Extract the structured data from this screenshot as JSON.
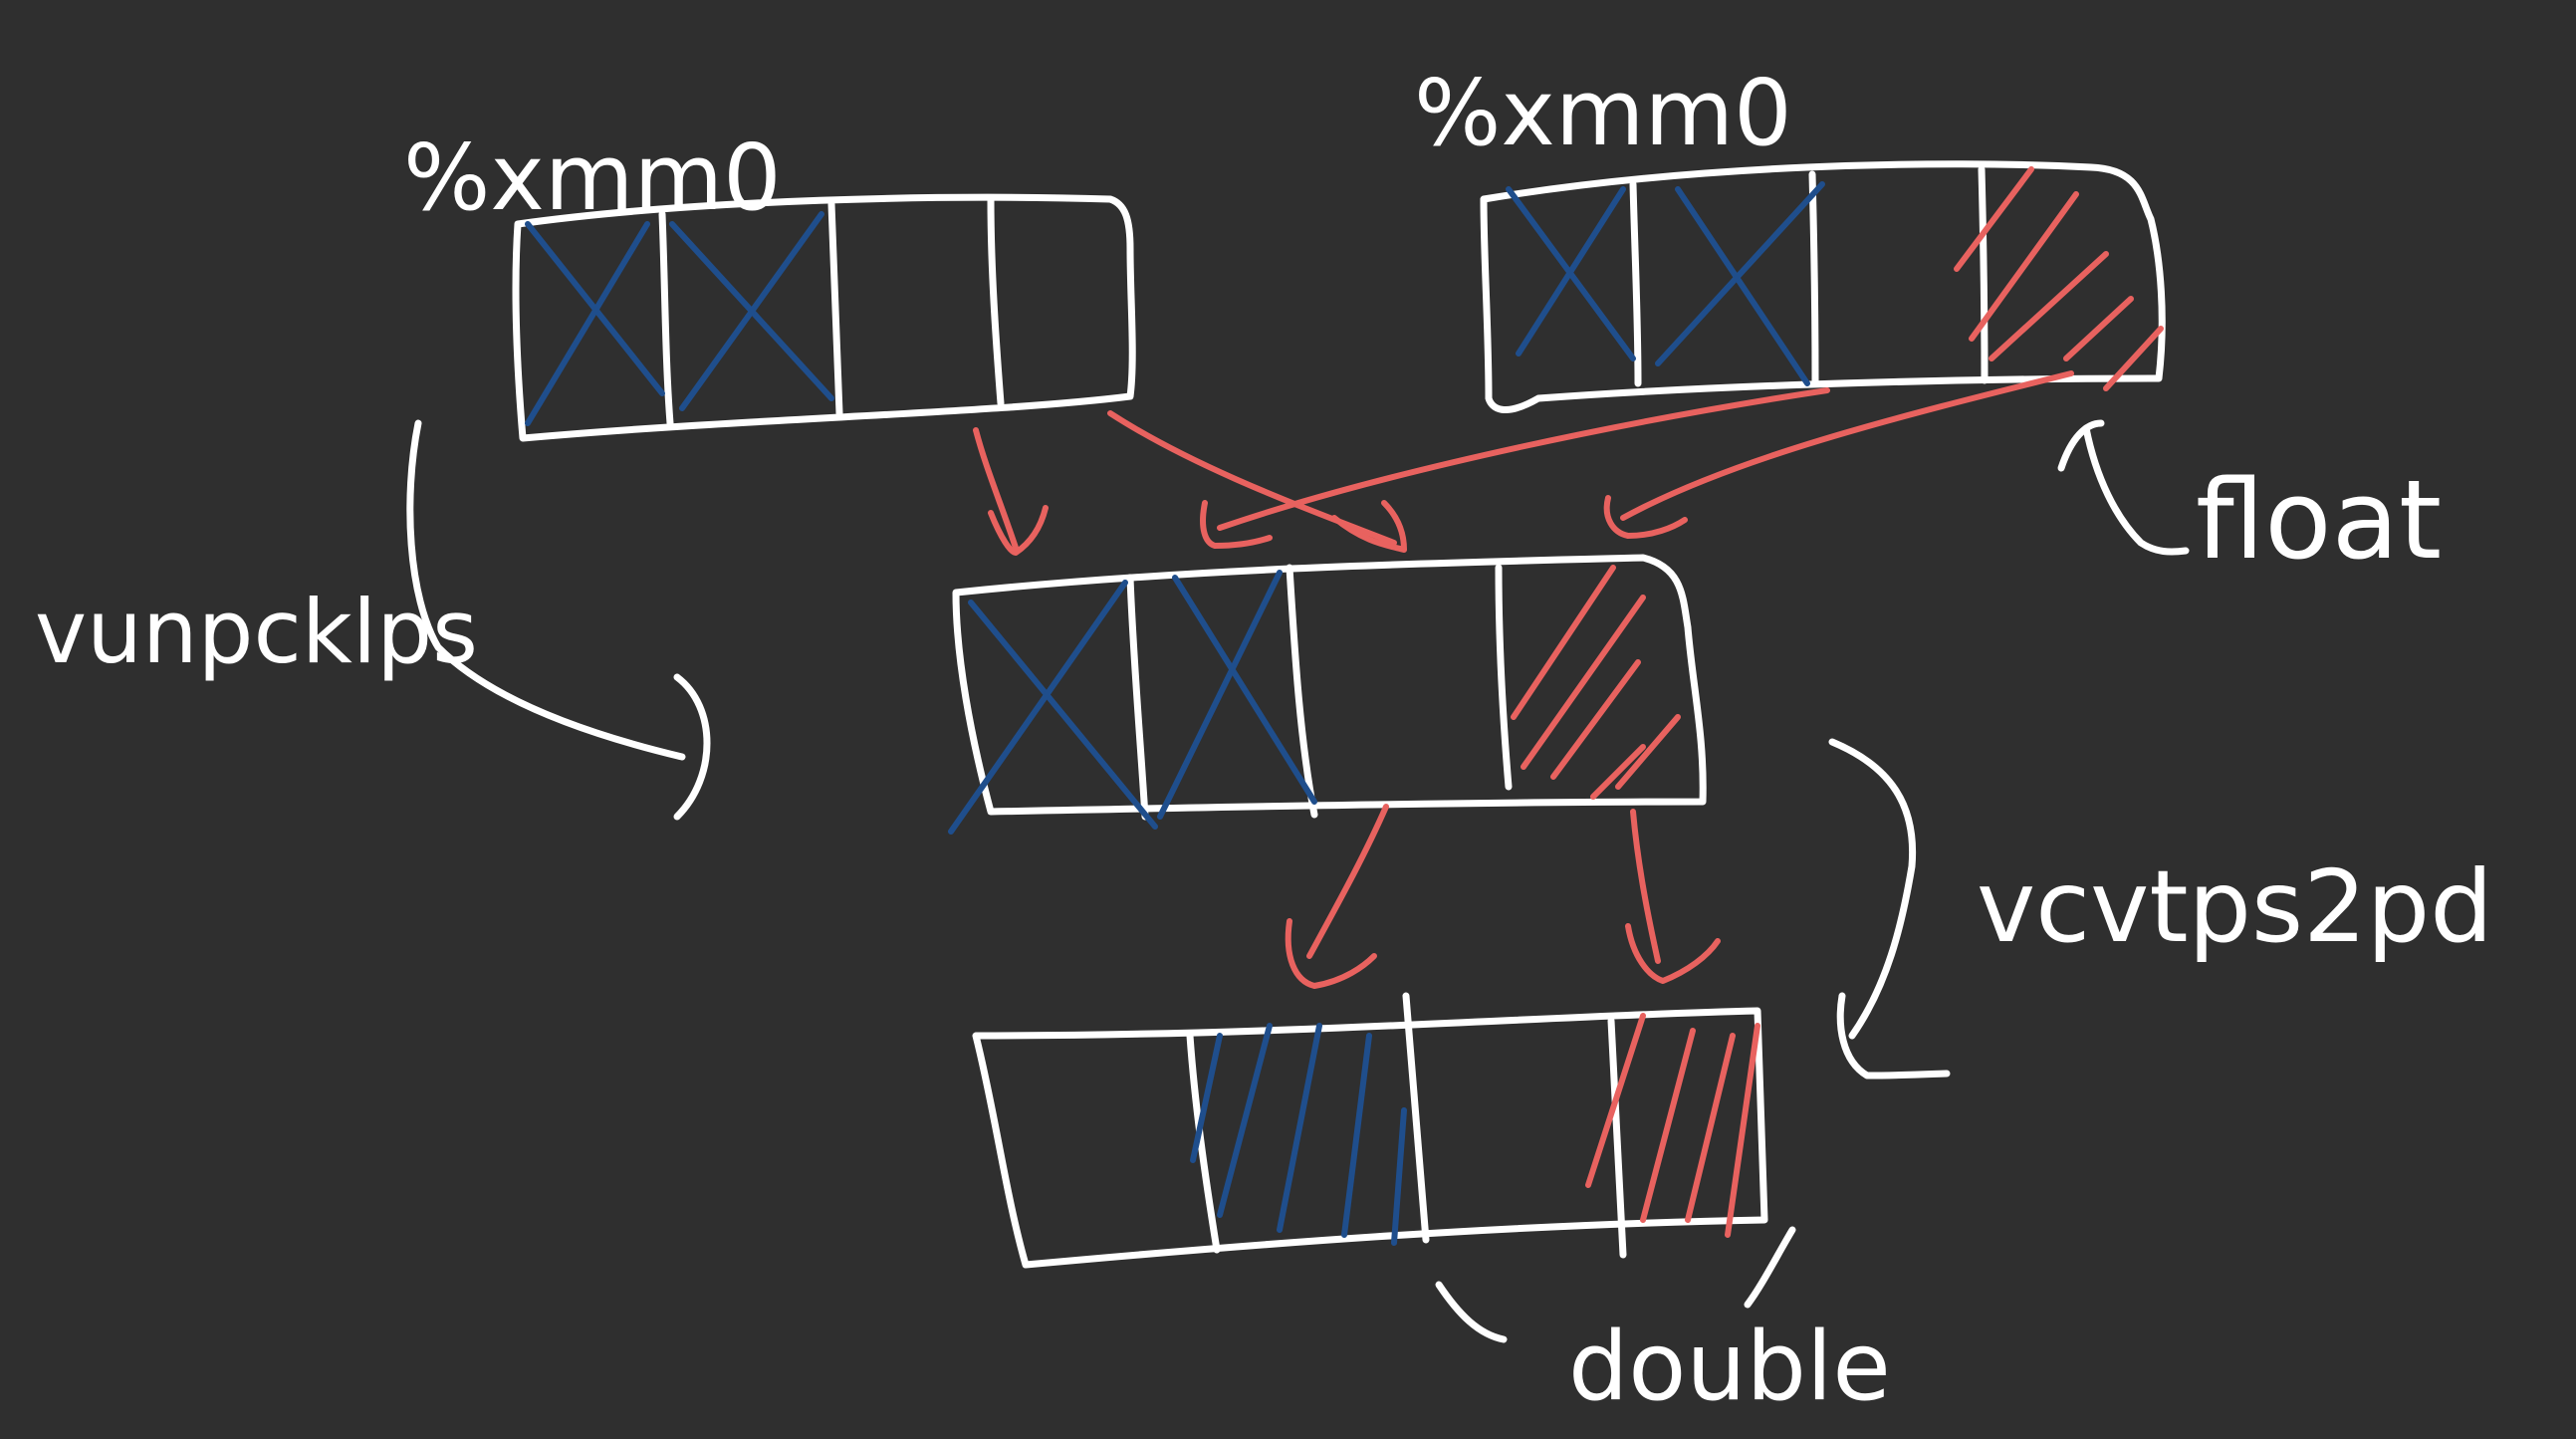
{
  "labels": {
    "register_left": "%xmm0",
    "register_right": "%xmm0",
    "instr_unpack": "vunpcklps",
    "instr_convert": "vcvtps2pd",
    "type_float": "float",
    "type_double": "double"
  },
  "colors": {
    "background": "#2f2f2f",
    "outline": "#ffffff",
    "zero_lane": "#1f4e8c",
    "data_lane": "#e8625f"
  }
}
